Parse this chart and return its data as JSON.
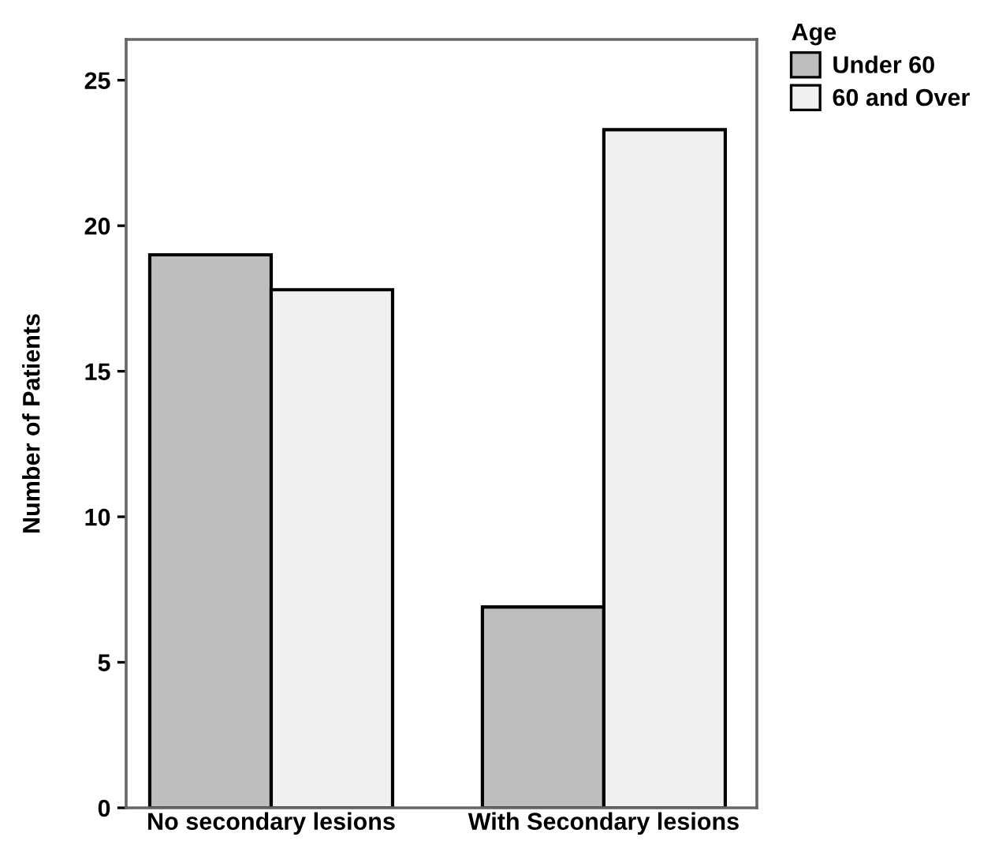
{
  "chart_data": {
    "type": "bar",
    "ylabel": "Number of Patients",
    "legend_title": "Age",
    "categories": [
      "No secondary lesions",
      "With Secondary lesions"
    ],
    "series": [
      {
        "name": "Under 60",
        "color": "#bebebe",
        "values": [
          19,
          6.9
        ]
      },
      {
        "name": "60 and Over",
        "color": "#f0f0f0",
        "values": [
          17.8,
          23.3
        ]
      }
    ],
    "ylim": [
      0,
      26.4
    ],
    "yticks": [
      0,
      5,
      10,
      15,
      20,
      25
    ],
    "grid": false,
    "legend": "top right"
  }
}
